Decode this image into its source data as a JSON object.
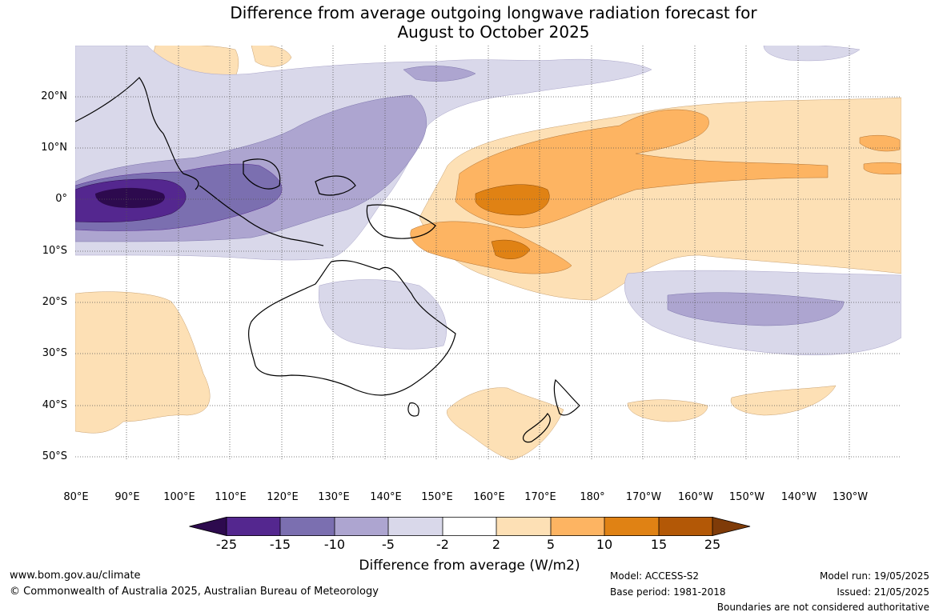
{
  "title_line1": "Difference from average outgoing longwave radiation forecast for",
  "title_line2": "August to October 2025",
  "latitudes": [
    "20°N",
    "10°N",
    "0°",
    "10°S",
    "20°S",
    "30°S",
    "40°S",
    "50°S"
  ],
  "longitudes": [
    "80°E",
    "90°E",
    "100°E",
    "110°E",
    "120°E",
    "130°E",
    "140°E",
    "150°E",
    "160°E",
    "170°E",
    "180°",
    "170°W",
    "160°W",
    "150°W",
    "140°W",
    "130°W"
  ],
  "colorbar": {
    "ticks": [
      "-25",
      "-15",
      "-10",
      "-5",
      "-2",
      "2",
      "5",
      "10",
      "15",
      "25"
    ],
    "colors": [
      "#2d0a4e",
      "#54278f",
      "#7b6fb0",
      "#ada5d0",
      "#d9d8ea",
      "#ffffff",
      "#fde0b5",
      "#fdb462",
      "#e08214",
      "#b35806",
      "#7f3b08"
    ],
    "label": "Difference from average (W/m2)"
  },
  "footer": {
    "website": "www.bom.gov.au/climate",
    "copyright": "© Commonwealth of Australia 2025, Australian Bureau of Meteorology",
    "model": "Model: ACCESS-S2",
    "base_period": "Base period: 1981-2018",
    "model_run": "Model run: 19/05/2025",
    "issued": "Issued: 21/05/2025",
    "disclaimer": "Boundaries are not considered authoritative"
  }
}
